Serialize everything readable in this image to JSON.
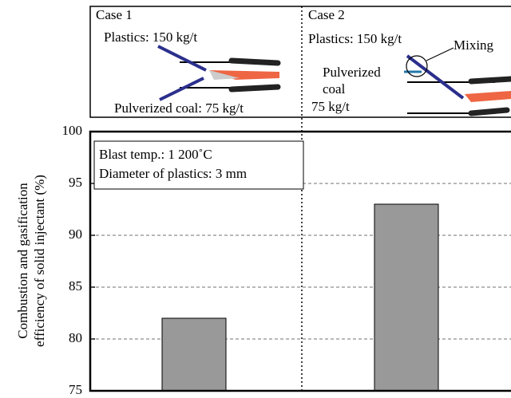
{
  "chart_data": {
    "type": "bar",
    "ylabel": [
      "Combustion and gasification",
      "efficiency of solid injectant (%)"
    ],
    "categories": [
      null,
      null
    ],
    "values": [
      82,
      93
    ],
    "color": "#999999",
    "ylim": [
      75,
      100
    ],
    "yticks": [
      75,
      80,
      85,
      90,
      95,
      100
    ],
    "grid": true,
    "annotation": [
      "Blast temp.: 1 200˚C",
      "Diameter of plastics: 3 mm"
    ]
  },
  "cases": [
    {
      "title": "Case 1",
      "plastics": "Plastics: 150 kg/t",
      "coal": [
        "Pulverized coal: 75 kg/t"
      ]
    },
    {
      "title": "Case 2",
      "plastics": "Plastics: 150 kg/t",
      "coal": [
        "Pulverized",
        "coal",
        "75 kg/t"
      ],
      "mixing": "Mixing"
    }
  ]
}
